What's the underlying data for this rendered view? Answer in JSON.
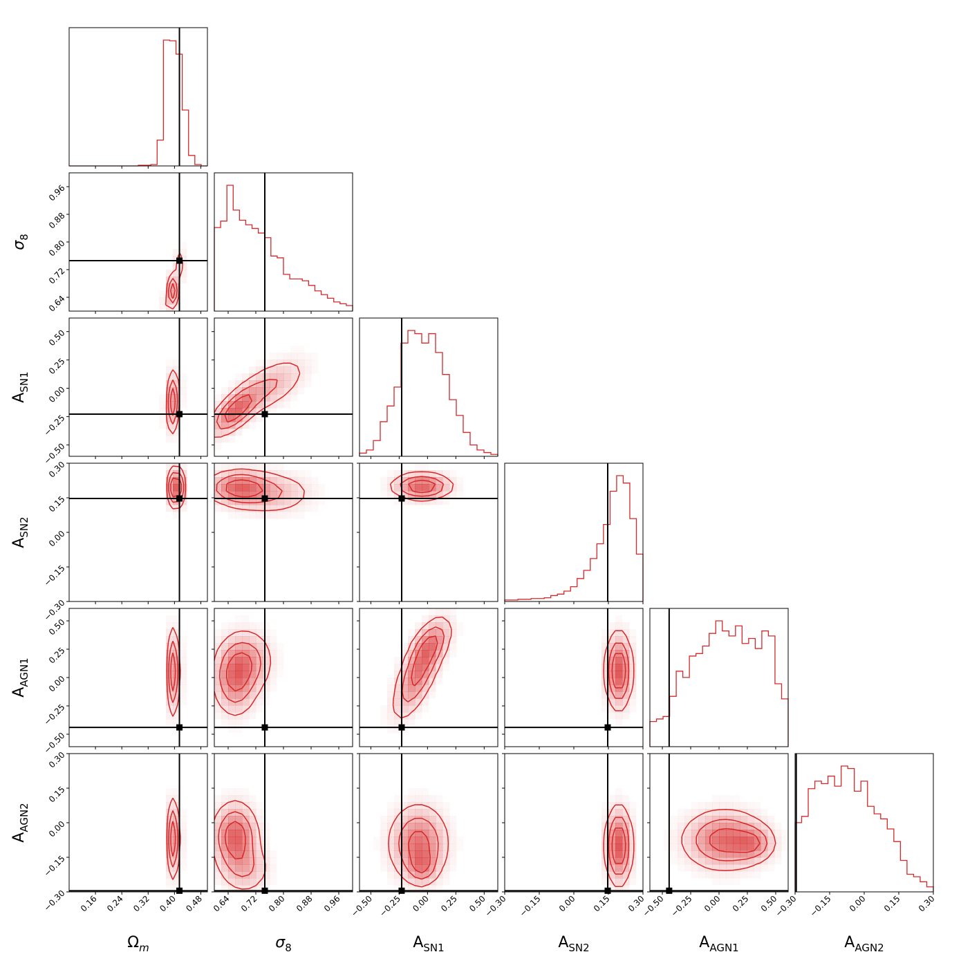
{
  "chart_data": {
    "type": "corner",
    "colors": {
      "posterior": "#d62728",
      "truth": "#000000"
    },
    "parameters": [
      {
        "key": "om",
        "label_main": "Ω",
        "label_sub": "m",
        "label_sub_italic": true,
        "range": [
          0.08,
          0.5
        ],
        "ticks": [
          0.16,
          0.24,
          0.32,
          0.4,
          0.48
        ],
        "tick_labels": [
          "0.16",
          "0.24",
          "0.32",
          "0.40",
          "0.48"
        ],
        "truth": 0.415
      },
      {
        "key": "s8",
        "label_main": "σ",
        "label_sub": "8",
        "label_sub_italic": false,
        "range": [
          0.6,
          1.0
        ],
        "ticks": [
          0.64,
          0.72,
          0.8,
          0.88,
          0.96
        ],
        "tick_labels": [
          "0.64",
          "0.72",
          "0.80",
          "0.88",
          "0.96"
        ],
        "truth": 0.746
      },
      {
        "key": "asn1",
        "label_main": "A",
        "label_sub": "SN1",
        "label_sub_italic": false,
        "range": [
          -0.6,
          0.62
        ],
        "ticks": [
          -0.5,
          -0.25,
          0.0,
          0.25,
          0.5
        ],
        "tick_labels": [
          "−0.50",
          "−0.25",
          "0.00",
          "0.25",
          "0.50"
        ],
        "truth": -0.228
      },
      {
        "key": "asn2",
        "label_main": "A",
        "label_sub": "SN2",
        "label_sub_italic": false,
        "range": [
          -0.3,
          0.3
        ],
        "ticks": [
          -0.3,
          -0.15,
          0.0,
          0.15,
          0.3
        ],
        "tick_labels": [
          "−0.30",
          "−0.15",
          "0.00",
          "0.15",
          "0.30"
        ],
        "truth": 0.147
      },
      {
        "key": "aagn1",
        "label_main": "A",
        "label_sub": "AGN1",
        "label_sub_italic": false,
        "range": [
          -0.61,
          0.61
        ],
        "ticks": [
          -0.5,
          -0.25,
          0.0,
          0.25,
          0.5
        ],
        "tick_labels": [
          "−0.50",
          "−0.25",
          "0.00",
          "0.25",
          "0.50"
        ],
        "truth": -0.44
      },
      {
        "key": "aagn2",
        "label_main": "A",
        "label_sub": "AGN2",
        "label_sub_italic": false,
        "range": [
          -0.3,
          0.3
        ],
        "ticks": [
          -0.3,
          -0.15,
          0.0,
          0.15,
          0.3
        ],
        "tick_labels": [
          "−0.30",
          "−0.15",
          "0.00",
          "0.15",
          "0.30"
        ],
        "truth": -0.295
      }
    ],
    "histograms": {
      "om": [
        0,
        0,
        0,
        0,
        0,
        0,
        0,
        0,
        0,
        0,
        0,
        1,
        1,
        2,
        37,
        180,
        179,
        160,
        80,
        15,
        2,
        0
      ],
      "s8": [
        91,
        98,
        137,
        110,
        99,
        94,
        90,
        85,
        80,
        60,
        58,
        40,
        35,
        35,
        33,
        28,
        22,
        18,
        14,
        10,
        8,
        6
      ],
      "asn1": [
        5,
        10,
        25,
        55,
        80,
        110,
        180,
        200,
        195,
        180,
        195,
        165,
        130,
        90,
        65,
        38,
        18,
        10,
        6,
        3
      ],
      "asn2": [
        2,
        2,
        3,
        3,
        4,
        4,
        5,
        8,
        10,
        14,
        20,
        31,
        42,
        58,
        78,
        104,
        149,
        170,
        160,
        112,
        64
      ],
      "aagn1": [
        20,
        22,
        24,
        40,
        60,
        55,
        72,
        74,
        80,
        90,
        100,
        92,
        88,
        96,
        82,
        86,
        78,
        92,
        88,
        50,
        38
      ],
      "aagn2": [
        55,
        60,
        82,
        88,
        86,
        92,
        84,
        100,
        98,
        80,
        88,
        68,
        62,
        58,
        50,
        40,
        25,
        14,
        12,
        8,
        4
      ]
    },
    "pair_blobs": [
      {
        "x": "om",
        "y": "s8",
        "peaks": [
          {
            "x": 0.392,
            "y": 0.652,
            "sx": 0.01,
            "sy": 0.028,
            "rho": 0.5,
            "w": 1.0
          },
          {
            "x": 0.405,
            "y": 0.7,
            "sx": 0.012,
            "sy": 0.05,
            "rho": 0.8,
            "w": 0.5
          }
        ]
      },
      {
        "x": "om",
        "y": "asn1",
        "peaks": [
          {
            "x": 0.395,
            "y": -0.12,
            "sx": 0.01,
            "sy": 0.15,
            "rho": 0.3,
            "w": 1.0
          }
        ]
      },
      {
        "x": "s8",
        "y": "asn1",
        "peaks": [
          {
            "x": 0.66,
            "y": -0.2,
            "sx": 0.04,
            "sy": 0.12,
            "rho": 0.7,
            "w": 1.0
          },
          {
            "x": 0.76,
            "y": 0.02,
            "sx": 0.06,
            "sy": 0.14,
            "rho": 0.6,
            "w": 0.45
          }
        ]
      },
      {
        "x": "om",
        "y": "asn2",
        "peaks": [
          {
            "x": 0.405,
            "y": 0.195,
            "sx": 0.01,
            "sy": 0.045,
            "rho": 0.0,
            "w": 1.0
          }
        ]
      },
      {
        "x": "s8",
        "y": "asn2",
        "peaks": [
          {
            "x": 0.67,
            "y": 0.195,
            "sx": 0.05,
            "sy": 0.04,
            "rho": 0.0,
            "w": 1.0
          },
          {
            "x": 0.76,
            "y": 0.17,
            "sx": 0.07,
            "sy": 0.05,
            "rho": 0.0,
            "w": 0.5
          }
        ]
      },
      {
        "x": "asn1",
        "y": "asn2",
        "peaks": [
          {
            "x": -0.05,
            "y": 0.2,
            "sx": 0.14,
            "sy": 0.03,
            "rho": 0.0,
            "w": 1.0
          }
        ]
      },
      {
        "x": "om",
        "y": "aagn1",
        "peaks": [
          {
            "x": 0.4,
            "y": 0.05,
            "sx": 0.008,
            "sy": 0.2,
            "rho": 0.0,
            "w": 1.0
          }
        ]
      },
      {
        "x": "s8",
        "y": "aagn1",
        "peaks": [
          {
            "x": 0.66,
            "y": 0.0,
            "sx": 0.035,
            "sy": 0.18,
            "rho": 0.0,
            "w": 1.0
          },
          {
            "x": 0.7,
            "y": 0.15,
            "sx": 0.04,
            "sy": 0.15,
            "rho": 0.0,
            "w": 0.6
          }
        ]
      },
      {
        "x": "asn1",
        "y": "aagn1",
        "peaks": [
          {
            "x": -0.08,
            "y": 0.05,
            "sx": 0.12,
            "sy": 0.22,
            "rho": 0.7,
            "w": 1.0
          },
          {
            "x": 0.03,
            "y": 0.3,
            "sx": 0.1,
            "sy": 0.12,
            "rho": 0.5,
            "w": 0.6
          }
        ]
      },
      {
        "x": "asn2",
        "y": "aagn1",
        "peaks": [
          {
            "x": 0.195,
            "y": 0.06,
            "sx": 0.03,
            "sy": 0.18,
            "rho": 0.0,
            "w": 1.0
          }
        ]
      },
      {
        "x": "om",
        "y": "aagn2",
        "peaks": [
          {
            "x": 0.4,
            "y": -0.07,
            "sx": 0.008,
            "sy": 0.09,
            "rho": 0.0,
            "w": 1.0
          }
        ]
      },
      {
        "x": "s8",
        "y": "aagn2",
        "peaks": [
          {
            "x": 0.66,
            "y": -0.06,
            "sx": 0.035,
            "sy": 0.08,
            "rho": 0.0,
            "w": 1.0
          },
          {
            "x": 0.69,
            "y": -0.2,
            "sx": 0.04,
            "sy": 0.06,
            "rho": 0.0,
            "w": 0.4
          }
        ]
      },
      {
        "x": "asn1",
        "y": "aagn2",
        "peaks": [
          {
            "x": -0.08,
            "y": -0.09,
            "sx": 0.14,
            "sy": 0.09,
            "rho": 0.0,
            "w": 1.0
          },
          {
            "x": -0.05,
            "y": -0.19,
            "sx": 0.07,
            "sy": 0.04,
            "rho": 0.0,
            "w": 0.6
          }
        ]
      },
      {
        "x": "asn2",
        "y": "aagn2",
        "peaks": [
          {
            "x": 0.195,
            "y": -0.1,
            "sx": 0.03,
            "sy": 0.09,
            "rho": 0.0,
            "w": 1.0
          }
        ]
      },
      {
        "x": "aagn1",
        "y": "aagn2",
        "peaks": [
          {
            "x": 0.05,
            "y": -0.075,
            "sx": 0.2,
            "sy": 0.07,
            "rho": 0.0,
            "w": 1.0
          },
          {
            "x": 0.3,
            "y": -0.09,
            "sx": 0.1,
            "sy": 0.04,
            "rho": 0.0,
            "w": 0.6
          }
        ]
      }
    ],
    "contour_levels": [
      0.15,
      0.4,
      0.7
    ]
  }
}
